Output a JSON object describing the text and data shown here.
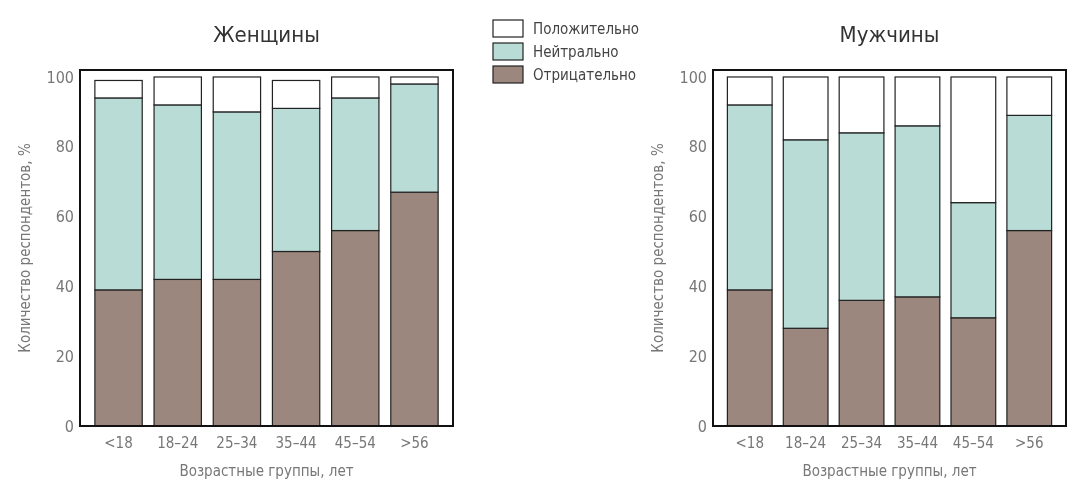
{
  "chart_data": [
    {
      "type": "bar",
      "title": "Женщины",
      "xlabel": "Возрастные группы, лет",
      "ylabel": "Количество респондентов, %",
      "categories": [
        "<18",
        "18–24",
        "25–34",
        "35–44",
        "45–54",
        ">56"
      ],
      "stacked": true,
      "legend": "right",
      "ylim": [
        0,
        102
      ],
      "yticks": [
        0,
        20,
        40,
        60,
        80,
        100
      ],
      "series": [
        {
          "name": "Отрицательно",
          "color": "#9b877d",
          "values": [
            39,
            42,
            42,
            50,
            56,
            67
          ]
        },
        {
          "name": "Нейтрально",
          "color": "#b9dcd6",
          "values": [
            55,
            50,
            48,
            41,
            38,
            31
          ]
        },
        {
          "name": "Положительно",
          "color": "#ffffff",
          "values": [
            5,
            8,
            10,
            8,
            6,
            2
          ]
        }
      ]
    },
    {
      "type": "bar",
      "title": "Мужчины",
      "xlabel": "Возрастные группы, лет",
      "ylabel": "Количество респондентов, %",
      "categories": [
        "<18",
        "18–24",
        "25–34",
        "35–44",
        "45–54",
        ">56"
      ],
      "stacked": true,
      "ylim": [
        0,
        102
      ],
      "yticks": [
        0,
        20,
        40,
        60,
        80,
        100
      ],
      "series": [
        {
          "color": "#9b877d",
          "values": [
            39,
            28,
            36,
            37,
            31,
            56
          ]
        },
        {
          "color": "#b9dcd6",
          "values": [
            53,
            54,
            48,
            49,
            33,
            33
          ]
        },
        {
          "color": "#ffffff",
          "values": [
            8,
            18,
            16,
            14,
            36,
            11
          ]
        }
      ]
    }
  ]
}
